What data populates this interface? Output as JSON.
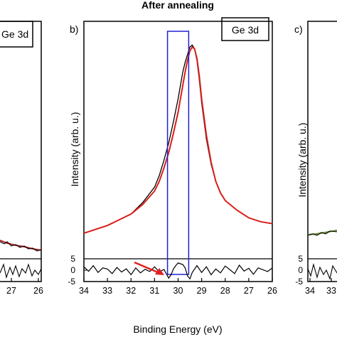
{
  "colors": {
    "measured": "#000000",
    "fit": "#d91e18",
    "fit_left_panel": "#b02020",
    "fit_right_panel": "#6a8c2f",
    "highlight_box": "#2020d0",
    "arrow": "#e02020"
  },
  "panels": {
    "left": {
      "label": "",
      "legend": "Ge 3d",
      "x_ticks": [
        "27",
        "26"
      ],
      "y_ticks_residual": [
        "5",
        "0",
        "-5"
      ]
    },
    "middle": {
      "title": "After annealing",
      "label": "b)",
      "legend": "Ge 3d",
      "ylabel": "Intensity (arb. u.)",
      "x_ticks": [
        "34",
        "33",
        "32",
        "31",
        "30",
        "29",
        "28",
        "27",
        "26"
      ],
      "y_ticks_residual": [
        "5",
        "0",
        "-5"
      ]
    },
    "right": {
      "label": "c)",
      "ylabel": "Intensity (arb. u.)",
      "x_ticks": [
        "34",
        "33"
      ],
      "y_ticks_residual": [
        "5",
        "0",
        "-5"
      ]
    }
  },
  "shared_xlabel": "Binding Energy (eV)",
  "chart_data": [
    {
      "panel": "b) spectrum",
      "type": "line",
      "title": "After annealing",
      "xlabel": "Binding Energy (eV)",
      "ylabel": "Intensity (arb. u.)",
      "xlim": [
        34,
        26
      ],
      "x_reversed": true,
      "ylim": [
        0,
        1.0
      ],
      "legend": "Ge 3d",
      "series": [
        {
          "role": "measured",
          "x": [
            34.0,
            33.5,
            33.0,
            32.5,
            32.0,
            31.5,
            31.0,
            30.8,
            30.6,
            30.4,
            30.2,
            30.0,
            29.9,
            29.8,
            29.7,
            29.6,
            29.5,
            29.4,
            29.3,
            29.2,
            29.1,
            29.0,
            28.8,
            28.6,
            28.4,
            28.2,
            28.0,
            27.5,
            27.0,
            26.5,
            26.0
          ],
          "y": [
            0.0,
            0.02,
            0.04,
            0.07,
            0.1,
            0.16,
            0.24,
            0.3,
            0.38,
            0.47,
            0.58,
            0.7,
            0.77,
            0.84,
            0.89,
            0.93,
            0.97,
            0.98,
            0.96,
            0.9,
            0.8,
            0.68,
            0.49,
            0.36,
            0.27,
            0.21,
            0.17,
            0.12,
            0.08,
            0.06,
            0.05
          ]
        },
        {
          "role": "fit",
          "x": [
            34.0,
            33.5,
            33.0,
            32.5,
            32.0,
            31.5,
            31.0,
            30.8,
            30.6,
            30.4,
            30.2,
            30.0,
            29.9,
            29.8,
            29.7,
            29.6,
            29.5,
            29.4,
            29.3,
            29.2,
            29.1,
            29.0,
            28.8,
            28.6,
            28.4,
            28.2,
            28.0,
            27.5,
            27.0,
            26.5,
            26.0
          ],
          "y": [
            0.0,
            0.02,
            0.04,
            0.07,
            0.1,
            0.15,
            0.22,
            0.27,
            0.34,
            0.42,
            0.52,
            0.63,
            0.7,
            0.77,
            0.84,
            0.9,
            0.95,
            0.97,
            0.96,
            0.91,
            0.82,
            0.7,
            0.51,
            0.37,
            0.27,
            0.21,
            0.17,
            0.12,
            0.08,
            0.06,
            0.05
          ]
        }
      ]
    },
    {
      "panel": "b) residual",
      "type": "line",
      "xlim": [
        34,
        26
      ],
      "x_reversed": true,
      "ylim": [
        -5,
        5
      ],
      "series": [
        {
          "role": "residual",
          "x": [
            34.0,
            33.8,
            33.6,
            33.4,
            33.2,
            33.0,
            32.8,
            32.6,
            32.4,
            32.2,
            32.0,
            31.8,
            31.6,
            31.4,
            31.2,
            31.0,
            30.8,
            30.6,
            30.4,
            30.3,
            30.2,
            30.1,
            30.0,
            29.9,
            29.8,
            29.7,
            29.6,
            29.5,
            29.4,
            29.2,
            29.0,
            28.8,
            28.6,
            28.4,
            28.2,
            28.0,
            27.8,
            27.6,
            27.4,
            27.2,
            27.0,
            26.8,
            26.6,
            26.4,
            26.2,
            26.0
          ],
          "y": [
            1.5,
            -0.5,
            2.0,
            -1.0,
            1.0,
            0.5,
            -1.5,
            1.2,
            -0.8,
            0.6,
            -2.0,
            1.0,
            -1.2,
            0.4,
            -0.6,
            1.5,
            -0.8,
            0.3,
            -3.5,
            -2.0,
            0.5,
            2.0,
            3.2,
            2.8,
            2.5,
            1.0,
            -2.5,
            -3.8,
            -1.0,
            2.0,
            -1.0,
            1.5,
            -2.0,
            0.5,
            -1.2,
            1.8,
            0.2,
            -1.5,
            2.2,
            -0.4,
            0.8,
            -1.8,
            1.0,
            0.2,
            -0.6,
            1.0
          ]
        }
      ]
    }
  ],
  "highlight": {
    "x_from": 30.45,
    "x_to": 29.55
  }
}
